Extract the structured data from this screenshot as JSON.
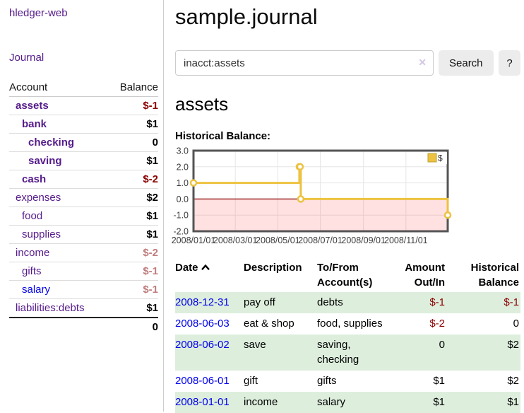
{
  "sidebar": {
    "app_title": "hledger-web",
    "journal_label": "Journal",
    "accounts_table": {
      "headers": {
        "account": "Account",
        "balance": "Balance"
      },
      "rows": [
        {
          "name": "assets",
          "indent": 1,
          "bold": true,
          "balance": "$-1",
          "balance_class": "neg-strong",
          "link_color": "purple"
        },
        {
          "name": "bank",
          "indent": 2,
          "bold": true,
          "balance": "$1",
          "balance_class": "",
          "link_color": "purple"
        },
        {
          "name": "checking",
          "indent": 3,
          "bold": true,
          "balance": "0",
          "balance_class": "",
          "link_color": "purple"
        },
        {
          "name": "saving",
          "indent": 3,
          "bold": true,
          "balance": "$1",
          "balance_class": "",
          "link_color": "purple"
        },
        {
          "name": "cash",
          "indent": 2,
          "bold": true,
          "balance": "$-2",
          "balance_class": "neg-strong",
          "link_color": "purple"
        },
        {
          "name": "expenses",
          "indent": 1,
          "bold": false,
          "balance": "$2",
          "balance_class": "",
          "link_color": "purple"
        },
        {
          "name": "food",
          "indent": 2,
          "bold": false,
          "balance": "$1",
          "balance_class": "",
          "link_color": "purple"
        },
        {
          "name": "supplies",
          "indent": 2,
          "bold": false,
          "balance": "$1",
          "balance_class": "",
          "link_color": "purple"
        },
        {
          "name": "income",
          "indent": 1,
          "bold": false,
          "balance": "$-2",
          "balance_class": "neg-soft",
          "link_color": "purple"
        },
        {
          "name": "gifts",
          "indent": 2,
          "bold": false,
          "balance": "$-1",
          "balance_class": "neg-soft",
          "link_color": "purple"
        },
        {
          "name": "salary",
          "indent": 2,
          "bold": false,
          "balance": "$-1",
          "balance_class": "neg-soft",
          "link_color": "blue"
        },
        {
          "name": "liabilities:debts",
          "indent": 1,
          "bold": false,
          "balance": "$1",
          "balance_class": "",
          "link_color": "purple"
        }
      ],
      "total": "0"
    }
  },
  "main": {
    "page_title": "sample.journal",
    "search": {
      "value": "inacct:assets",
      "clear_icon": "✕",
      "button_label": "Search",
      "help_label": "?"
    },
    "account_heading": "assets",
    "chart_label": "Historical Balance:"
  },
  "chart_data": {
    "type": "line",
    "title": "Historical Balance",
    "step": true,
    "series": [
      {
        "name": "$",
        "color": "#EDC240",
        "points": [
          [
            "2008-01-01",
            1
          ],
          [
            "2008-06-01",
            2
          ],
          [
            "2008-06-02",
            2
          ],
          [
            "2008-06-03",
            0
          ],
          [
            "2008-12-31",
            -1
          ]
        ]
      }
    ],
    "x_start": "2008-01-01",
    "x_end": "2008-12-31",
    "ylim": [
      -2,
      3
    ],
    "yticks": [
      3,
      2,
      1,
      0,
      -1,
      -2
    ],
    "ytick_labels": [
      "3.0",
      "2.0",
      "1.0",
      "0.0",
      "-1.0",
      "-2.0"
    ],
    "xticks": [
      {
        "label": "2008/01/01",
        "date": "2008-01-01"
      },
      {
        "label": "2008/03/01",
        "date": "2008-03-01"
      },
      {
        "label": "2008/05/01",
        "date": "2008-05-01"
      },
      {
        "label": "2008/07/01",
        "date": "2008-07-01"
      },
      {
        "label": "2008/09/01",
        "date": "2008-09-01"
      },
      {
        "label": "2008/11/01",
        "date": "2008-11-01"
      }
    ],
    "legend": {
      "label": "$",
      "position": "top-right"
    },
    "grid": true,
    "gridline_color": "#e6e6e6",
    "border_color": "#545454",
    "axis_text_color": "#3c3c3c",
    "zero_line_color": "#8b0000",
    "negative_region_color": "rgba(255,70,70,0.16)"
  },
  "register_table": {
    "headers": {
      "date": "Date",
      "description": "Description",
      "accounts": "To/From Account(s)",
      "amount": "Amount Out/In",
      "balance": "Historical Balance"
    },
    "rows": [
      {
        "date": "2008-12-31",
        "description": "pay off",
        "accounts": "debts",
        "amount": "$-1",
        "amount_neg": true,
        "balance": "$-1",
        "balance_neg": true
      },
      {
        "date": "2008-06-03",
        "description": "eat & shop",
        "accounts": "food, supplies",
        "amount": "$-2",
        "amount_neg": true,
        "balance": "0",
        "balance_neg": false
      },
      {
        "date": "2008-06-02",
        "description": "save",
        "accounts": "saving, checking",
        "amount": "0",
        "amount_neg": false,
        "balance": "$2",
        "balance_neg": false
      },
      {
        "date": "2008-06-01",
        "description": "gift",
        "accounts": "gifts",
        "amount": "$1",
        "amount_neg": false,
        "balance": "$2",
        "balance_neg": false
      },
      {
        "date": "2008-01-01",
        "description": "income",
        "accounts": "salary",
        "amount": "$1",
        "amount_neg": false,
        "balance": "$1",
        "balance_neg": false
      }
    ]
  }
}
